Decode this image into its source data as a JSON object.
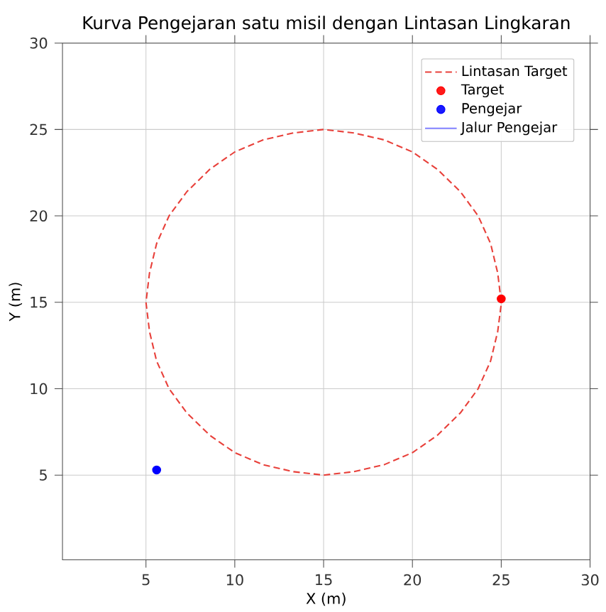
{
  "chart_data": {
    "type": "line",
    "title": "Kurva Pengejaran satu misil dengan Lintasan Lingkaran",
    "xlabel": "X (m)",
    "ylabel": "Y (m)",
    "xlim": [
      0.3,
      30
    ],
    "ylim": [
      0.1,
      30
    ],
    "xticks": [
      5,
      10,
      15,
      20,
      25,
      30
    ],
    "yticks": [
      5,
      10,
      15,
      20,
      25,
      30
    ],
    "grid": true,
    "legend": "top right",
    "series": [
      {
        "name": "Lintasan Target",
        "color": "#e8403a",
        "line_style": "dashed",
        "x": [
          25,
          24.8,
          24.4,
          23.7,
          22.7,
          21.4,
          20,
          18.4,
          16.7,
          15,
          13.3,
          11.6,
          10,
          8.6,
          7.3,
          6.3,
          5.6,
          5.2,
          5,
          5.2,
          5.6,
          6.3,
          7.3,
          8.6,
          10,
          11.6,
          13.3,
          15,
          16.7,
          18.4,
          20,
          21.4,
          22.7,
          23.7,
          24.4,
          24.8,
          25
        ],
        "values": [
          15,
          16.7,
          18.4,
          20,
          21.4,
          22.7,
          23.7,
          24.4,
          24.8,
          25,
          24.8,
          24.4,
          23.7,
          22.7,
          21.4,
          20,
          18.4,
          16.7,
          15,
          13.3,
          11.6,
          10,
          8.6,
          7.3,
          6.3,
          5.6,
          5.2,
          5,
          5.2,
          5.6,
          6.3,
          7.3,
          8.6,
          10,
          11.6,
          13.3,
          14.9
        ]
      },
      {
        "name": "Target",
        "type": "scatter",
        "color": "#ff0000",
        "marker": "circle",
        "x": [
          25
        ],
        "values": [
          15.2
        ]
      },
      {
        "name": "Pengejar",
        "type": "scatter",
        "color": "#0000ff",
        "marker": "circle",
        "x": [
          5.6
        ],
        "values": [
          5.3
        ]
      },
      {
        "name": "Jalur Pengejar",
        "color": "#8080ff",
        "line_style": "solid"
      }
    ]
  }
}
